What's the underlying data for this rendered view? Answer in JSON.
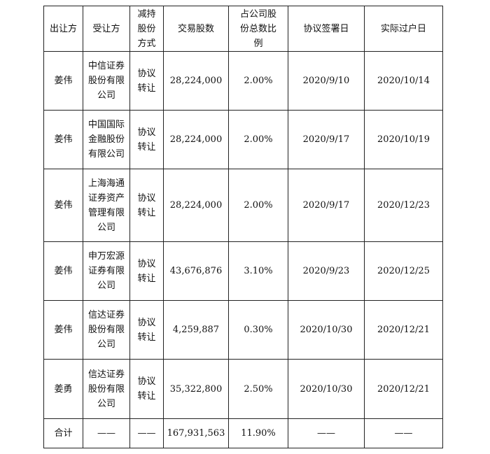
{
  "table": {
    "header": [
      "出让方",
      "受让方",
      "减持股份方式",
      "交易股数",
      "占公司股份总数比例",
      "协议签署日",
      "实际过户日"
    ],
    "rows": [
      [
        "姜伟",
        "中信证券股份有限公司",
        "协议转让",
        "28,224,000",
        "2.00%",
        "2020/9/10",
        "2020/10/14"
      ],
      [
        "姜伟",
        "中国国际金融股份有限公司",
        "协议转让",
        "28,224,000",
        "2.00%",
        "2020/9/17",
        "2020/10/19"
      ],
      [
        "姜伟",
        "上海海通证券资产管理有限公司",
        "协议转让",
        "28,224,000",
        "2.00%",
        "2020/9/17",
        "2020/12/23"
      ],
      [
        "姜伟",
        "申万宏源证券有限公司",
        "协议转让",
        "43,676,876",
        "3.10%",
        "2020/9/23",
        "2020/12/25"
      ],
      [
        "姜伟",
        "信达证券股份有限公司",
        "协议转让",
        "4,259,887",
        "0.30%",
        "2020/10/30",
        "2020/12/21"
      ],
      [
        "姜勇",
        "信达证券股份有限公司",
        "协议转让",
        "35,322,800",
        "2.50%",
        "2020/10/30",
        "2020/12/21"
      ],
      [
        "合计",
        "——",
        "——",
        "167,931,563",
        "11.90%",
        "——",
        "——"
      ]
    ]
  }
}
